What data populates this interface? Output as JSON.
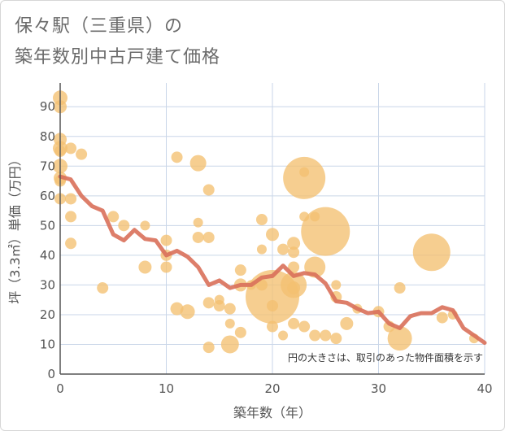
{
  "title_line1": "保々駅（三重県）の",
  "title_line2": "築年数別中古戸建て価格",
  "chart_data": {
    "type": "scatter",
    "title": "保々駅（三重県）の築年数別中古戸建て価格",
    "xlabel": "築年数（年）",
    "ylabel": "坪（3.3㎡）単価（万円）",
    "xlim": [
      0,
      40
    ],
    "ylim": [
      0,
      98
    ],
    "xticks": [
      0,
      10,
      20,
      30,
      40
    ],
    "yticks": [
      0,
      10,
      20,
      30,
      40,
      50,
      60,
      70,
      80,
      90
    ],
    "grid": true,
    "annotation": "円の大きさは、取引のあった物件面積を示す",
    "bubbles": [
      {
        "x": 0,
        "y": 93,
        "r": 9
      },
      {
        "x": 0,
        "y": 90,
        "r": 8
      },
      {
        "x": 0,
        "y": 79,
        "r": 8
      },
      {
        "x": 0,
        "y": 76,
        "r": 9
      },
      {
        "x": 0,
        "y": 75,
        "r": 7
      },
      {
        "x": 0,
        "y": 70,
        "r": 9
      },
      {
        "x": 0,
        "y": 66,
        "r": 8
      },
      {
        "x": 0,
        "y": 65,
        "r": 7
      },
      {
        "x": 0,
        "y": 59,
        "r": 7
      },
      {
        "x": 1,
        "y": 76,
        "r": 7
      },
      {
        "x": 1,
        "y": 59,
        "r": 7
      },
      {
        "x": 1,
        "y": 53,
        "r": 7
      },
      {
        "x": 1,
        "y": 44,
        "r": 7
      },
      {
        "x": 2,
        "y": 74,
        "r": 7
      },
      {
        "x": 4,
        "y": 29,
        "r": 7
      },
      {
        "x": 5,
        "y": 53,
        "r": 7
      },
      {
        "x": 6,
        "y": 50,
        "r": 7
      },
      {
        "x": 8,
        "y": 50,
        "r": 6
      },
      {
        "x": 8,
        "y": 36,
        "r": 8
      },
      {
        "x": 10,
        "y": 45,
        "r": 7
      },
      {
        "x": 10,
        "y": 40,
        "r": 7
      },
      {
        "x": 10,
        "y": 36,
        "r": 7
      },
      {
        "x": 11,
        "y": 73,
        "r": 7
      },
      {
        "x": 11,
        "y": 22,
        "r": 8
      },
      {
        "x": 12,
        "y": 21,
        "r": 9
      },
      {
        "x": 13,
        "y": 71,
        "r": 10
      },
      {
        "x": 13,
        "y": 51,
        "r": 6
      },
      {
        "x": 13,
        "y": 46,
        "r": 7
      },
      {
        "x": 14,
        "y": 62,
        "r": 7
      },
      {
        "x": 14,
        "y": 46,
        "r": 7
      },
      {
        "x": 14,
        "y": 24,
        "r": 7
      },
      {
        "x": 14,
        "y": 9,
        "r": 7
      },
      {
        "x": 15,
        "y": 25,
        "r": 6
      },
      {
        "x": 15,
        "y": 23,
        "r": 7
      },
      {
        "x": 16,
        "y": 22,
        "r": 7
      },
      {
        "x": 16,
        "y": 17,
        "r": 6
      },
      {
        "x": 16,
        "y": 10,
        "r": 11
      },
      {
        "x": 17,
        "y": 35,
        "r": 7
      },
      {
        "x": 17,
        "y": 30,
        "r": 8
      },
      {
        "x": 17,
        "y": 14,
        "r": 7
      },
      {
        "x": 18,
        "y": 30,
        "r": 6
      },
      {
        "x": 19,
        "y": 52,
        "r": 7
      },
      {
        "x": 19,
        "y": 42,
        "r": 6
      },
      {
        "x": 19,
        "y": 30,
        "r": 7
      },
      {
        "x": 20,
        "y": 47,
        "r": 8
      },
      {
        "x": 20,
        "y": 26,
        "r": 33
      },
      {
        "x": 20,
        "y": 23,
        "r": 7
      },
      {
        "x": 20,
        "y": 16,
        "r": 7
      },
      {
        "x": 21,
        "y": 42,
        "r": 7
      },
      {
        "x": 21,
        "y": 13,
        "r": 6
      },
      {
        "x": 22,
        "y": 44,
        "r": 8
      },
      {
        "x": 22,
        "y": 41,
        "r": 7
      },
      {
        "x": 22,
        "y": 36,
        "r": 7
      },
      {
        "x": 22,
        "y": 30,
        "r": 16
      },
      {
        "x": 22,
        "y": 29,
        "r": 8
      },
      {
        "x": 22,
        "y": 17,
        "r": 7
      },
      {
        "x": 23,
        "y": 66,
        "r": 26
      },
      {
        "x": 23,
        "y": 68,
        "r": 6
      },
      {
        "x": 23,
        "y": 53,
        "r": 6
      },
      {
        "x": 23,
        "y": 16,
        "r": 7
      },
      {
        "x": 24,
        "y": 53,
        "r": 6
      },
      {
        "x": 24,
        "y": 36,
        "r": 13
      },
      {
        "x": 24,
        "y": 13,
        "r": 7
      },
      {
        "x": 25,
        "y": 48,
        "r": 30
      },
      {
        "x": 25,
        "y": 13,
        "r": 7
      },
      {
        "x": 26,
        "y": 30,
        "r": 6
      },
      {
        "x": 26,
        "y": 26,
        "r": 7
      },
      {
        "x": 26,
        "y": 12,
        "r": 7
      },
      {
        "x": 27,
        "y": 17,
        "r": 8
      },
      {
        "x": 28,
        "y": 22,
        "r": 6
      },
      {
        "x": 30,
        "y": 21,
        "r": 7
      },
      {
        "x": 31,
        "y": 16,
        "r": 7
      },
      {
        "x": 32,
        "y": 29,
        "r": 7
      },
      {
        "x": 32,
        "y": 12,
        "r": 15
      },
      {
        "x": 35,
        "y": 41,
        "r": 23
      },
      {
        "x": 36,
        "y": 19,
        "r": 7
      },
      {
        "x": 37,
        "y": 20,
        "r": 6
      },
      {
        "x": 39,
        "y": 12,
        "r": 6
      }
    ],
    "trend_line": {
      "x": [
        0,
        1,
        2,
        3,
        4,
        5,
        6,
        7,
        8,
        9,
        10,
        11,
        12,
        13,
        14,
        15,
        16,
        17,
        18,
        19,
        20,
        21,
        22,
        23,
        24,
        25,
        26,
        27,
        28,
        29,
        30,
        31,
        32,
        33,
        34,
        35,
        36,
        37,
        38,
        39,
        40
      ],
      "y": [
        66.5,
        65.5,
        60,
        56.5,
        55,
        47,
        45,
        48.5,
        45.5,
        45,
        40,
        41.5,
        39.5,
        36,
        30,
        31.5,
        29,
        30,
        30,
        32.5,
        33,
        36.5,
        33,
        34,
        33.5,
        30.5,
        24.5,
        24,
        22,
        20.5,
        21,
        17,
        15.5,
        19.5,
        20.5,
        20.5,
        22.5,
        21.5,
        15.5,
        13,
        10.5
      ]
    },
    "colors": {
      "bubble": "#f4c071",
      "line": "#d9705a",
      "grid": "#c9d6e8",
      "axis": "#555555"
    }
  }
}
